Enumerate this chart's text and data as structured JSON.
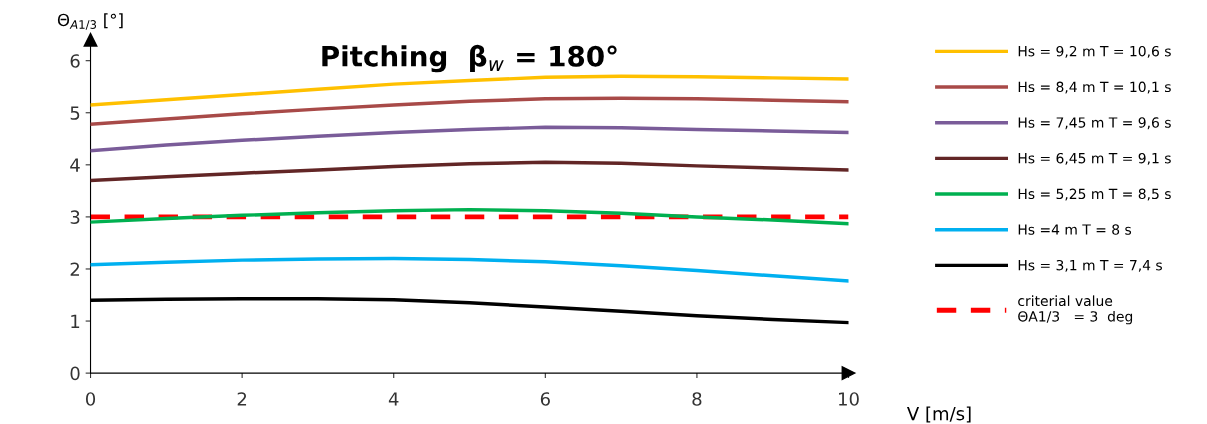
{
  "chart_data": {
    "type": "line",
    "title": "Pitching  β$_{w}$ = 180°",
    "xlabel": "V [m/s]",
    "ylabel": "Θ$_{A1/3}$ [°]",
    "x": [
      0,
      1,
      2,
      3,
      4,
      5,
      6,
      7,
      8,
      9,
      10
    ],
    "series": [
      {
        "name": "Hs = 9,2 m T = 10,6 s",
        "color": "#ffc000",
        "values": [
          5.15,
          5.25,
          5.35,
          5.45,
          5.55,
          5.62,
          5.68,
          5.7,
          5.69,
          5.67,
          5.65
        ]
      },
      {
        "name": "Hs = 8,4 m T = 10,1 s",
        "color": "#a84a48",
        "values": [
          4.78,
          4.88,
          4.98,
          5.07,
          5.15,
          5.22,
          5.27,
          5.28,
          5.27,
          5.24,
          5.21
        ]
      },
      {
        "name": "Hs = 7,45 m T = 9,6 s",
        "color": "#7a5c99",
        "values": [
          4.27,
          4.38,
          4.47,
          4.55,
          4.62,
          4.68,
          4.72,
          4.71,
          4.68,
          4.65,
          4.62
        ]
      },
      {
        "name": "Hs = 6,45 m T = 9,1 s",
        "color": "#622626",
        "values": [
          3.7,
          3.77,
          3.84,
          3.9,
          3.97,
          4.02,
          4.05,
          4.03,
          3.98,
          3.94,
          3.9
        ]
      },
      {
        "name": "Hs = 5,25 m T = 8,5 s",
        "color": "#00b050",
        "values": [
          2.9,
          2.97,
          3.03,
          3.08,
          3.12,
          3.14,
          3.12,
          3.07,
          3.0,
          2.94,
          2.87
        ]
      },
      {
        "name": "Hs =4 m T = 8 s",
        "color": "#00b0f0",
        "values": [
          2.08,
          2.13,
          2.17,
          2.19,
          2.2,
          2.18,
          2.14,
          2.06,
          1.97,
          1.87,
          1.77
        ]
      },
      {
        "name": "Hs = 3,1 m T = 7,4 s",
        "color": "#000000",
        "values": [
          1.4,
          1.42,
          1.43,
          1.43,
          1.41,
          1.35,
          1.27,
          1.19,
          1.1,
          1.03,
          0.97
        ]
      }
    ],
    "ref_lines": [
      {
        "axis": "y",
        "value": 3,
        "label": "criterial value\nΘA1/3   = 3  deg",
        "color": "#ff0000",
        "line_style": "dashed"
      }
    ],
    "xlim": [
      0,
      10
    ],
    "xticks": [
      0,
      2,
      4,
      6,
      8,
      10
    ],
    "ylim": [
      0,
      6.4
    ],
    "yticks": [
      0,
      1,
      2,
      3,
      4,
      5,
      6
    ],
    "grid": false,
    "legend": "right",
    "marker": "none",
    "line_style": "solid"
  }
}
